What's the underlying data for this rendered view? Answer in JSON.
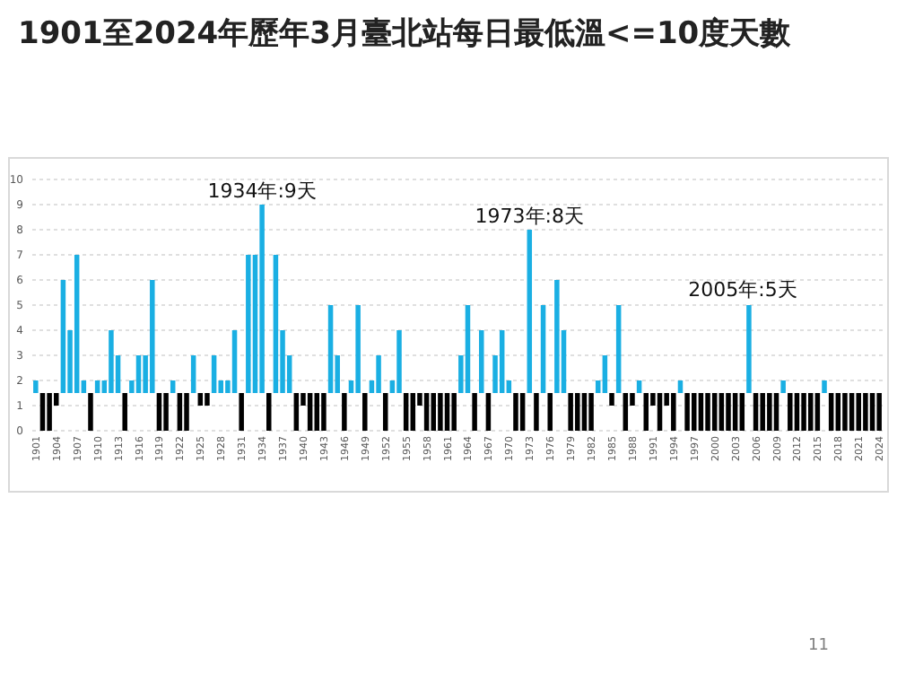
{
  "chart_data": {
    "type": "bar",
    "title": "1901至2024年歷年3月臺北站每日最低溫<=10度天數",
    "categories": [
      "1901",
      null,
      null,
      "1904",
      null,
      null,
      "1907",
      null,
      null,
      "1910",
      null,
      null,
      "1913",
      null,
      null,
      "1916",
      null,
      null,
      "1919",
      null,
      null,
      "1922",
      null,
      null,
      "1925",
      null,
      null,
      "1928",
      null,
      null,
      "1931",
      null,
      null,
      "1934",
      null,
      null,
      "1937",
      null,
      null,
      "1940",
      null,
      null,
      "1943",
      null,
      null,
      "1946",
      null,
      null,
      "1949",
      null,
      null,
      "1952",
      null,
      null,
      "1955",
      null,
      null,
      "1958",
      null,
      null,
      "1961",
      null,
      null,
      "1964",
      null,
      null,
      "1967",
      null,
      null,
      "1970",
      null,
      null,
      "1973",
      null,
      null,
      "1976",
      null,
      null,
      "1979",
      null,
      null,
      "1982",
      null,
      null,
      "1985",
      null,
      null,
      "1988",
      null,
      null,
      "1991",
      null,
      null,
      "1994",
      null,
      null,
      "1997",
      null,
      null,
      "2000",
      null,
      null,
      "2003",
      null,
      null,
      "2006",
      null,
      null,
      "2009",
      null,
      null,
      "2012",
      null,
      null,
      "2015",
      null,
      null,
      "2018",
      null,
      null,
      "2021",
      null,
      null,
      "2024"
    ],
    "base": [
      1.5,
      1.5,
      1.5,
      1.5,
      1.5,
      1.5,
      1.5,
      1.5,
      1.5,
      1.5,
      1.5,
      1.5,
      1.5,
      1.5,
      1.5,
      1.5,
      1.5,
      1.5,
      1.5,
      1.5,
      1.5,
      1.5,
      1.5,
      1.5,
      1.5,
      1.5,
      1.5,
      1.5,
      1.5,
      1.5,
      1.5,
      1.5,
      1.5,
      1.5,
      1.5,
      1.5,
      1.5,
      1.5,
      1.5,
      1.5,
      1.5,
      1.5,
      1.5,
      1.5,
      1.5,
      1.5,
      1.5,
      1.5,
      1.5,
      1.5,
      1.5,
      1.5,
      1.5,
      1.5,
      1.5,
      1.5,
      1.5,
      1.5,
      1.5,
      1.5,
      1.5,
      1.5,
      1.5,
      1.5,
      1.5,
      1.5,
      1.5,
      1.5,
      1.5,
      1.5,
      1.5,
      1.5,
      1.5,
      1.5,
      1.5,
      1.5,
      1.5,
      1.5,
      1.5,
      1.5,
      1.5,
      1.5,
      1.5,
      1.5,
      1.5,
      1.5,
      1.5,
      1.5,
      1.5,
      1.5,
      1.5,
      1.5,
      1.5,
      1.5,
      1.5,
      1.5,
      1.5,
      1.5,
      1.5,
      1.5,
      1.5,
      1.5,
      1.5,
      1.5,
      1.5,
      1.5,
      1.5,
      1.5,
      1.5,
      1.5,
      1.5,
      1.5,
      1.5,
      1.5,
      1.5,
      1.5,
      1.5,
      1.5,
      1.5,
      1.5,
      1.5,
      1.5,
      1.5,
      1.5
    ],
    "values": [
      0.5,
      -1.5,
      -1.5,
      -0.5,
      4.5,
      2.5,
      5.5,
      0.5,
      -1.5,
      0.5,
      0.5,
      2.5,
      1.5,
      -1.5,
      0.5,
      1.5,
      1.5,
      4.5,
      -1.5,
      -1.5,
      0.5,
      -1.5,
      -1.5,
      1.5,
      -0.5,
      -0.5,
      1.5,
      0.5,
      0.5,
      2.5,
      -1.5,
      5.5,
      5.5,
      7.5,
      -1.5,
      5.5,
      2.5,
      1.5,
      -1.5,
      -0.5,
      -1.5,
      -1.5,
      -1.5,
      3.5,
      1.5,
      -1.5,
      0.5,
      3.5,
      -1.5,
      0.5,
      1.5,
      -1.5,
      0.5,
      2.5,
      -1.5,
      -1.5,
      -0.5,
      -1.5,
      -1.5,
      -1.5,
      -1.5,
      -1.5,
      1.5,
      3.5,
      -1.5,
      2.5,
      -1.5,
      1.5,
      2.5,
      0.5,
      -1.5,
      -1.5,
      6.5,
      -1.5,
      3.5,
      -1.5,
      4.5,
      2.5,
      -1.5,
      -1.5,
      -1.5,
      -1.5,
      0.5,
      1.5,
      -0.5,
      3.5,
      -1.5,
      -0.5,
      0.5,
      -1.5,
      -0.5,
      -1.5,
      -0.5,
      -1.5,
      0.5,
      -1.5,
      -1.5,
      -1.5,
      -1.5,
      -1.5,
      -1.5,
      -1.5,
      -1.5,
      -1.5,
      3.5,
      -1.5,
      -1.5,
      -1.5,
      -1.5,
      0.5,
      -1.5,
      -1.5,
      -1.5,
      -1.5,
      -1.5,
      0.5,
      -1.5,
      -1.5,
      -1.5,
      -1.5,
      -1.5,
      -1.5,
      -1.5,
      -1.5
    ],
    "colors": [
      "#1aafe3",
      "#000000",
      "#000000",
      "#000000",
      "#1aafe3",
      "#1aafe3",
      "#1aafe3",
      "#1aafe3",
      "#000000",
      "#1aafe3",
      "#1aafe3",
      "#1aafe3",
      "#1aafe3",
      "#000000",
      "#1aafe3",
      "#1aafe3",
      "#1aafe3",
      "#1aafe3",
      "#000000",
      "#000000",
      "#1aafe3",
      "#000000",
      "#000000",
      "#1aafe3",
      "#000000",
      "#000000",
      "#1aafe3",
      "#1aafe3",
      "#1aafe3",
      "#1aafe3",
      "#000000",
      "#1aafe3",
      "#1aafe3",
      "#1aafe3",
      "#000000",
      "#1aafe3",
      "#1aafe3",
      "#1aafe3",
      "#000000",
      "#000000",
      "#000000",
      "#000000",
      "#000000",
      "#1aafe3",
      "#1aafe3",
      "#000000",
      "#1aafe3",
      "#1aafe3",
      "#000000",
      "#1aafe3",
      "#1aafe3",
      "#000000",
      "#1aafe3",
      "#1aafe3",
      "#000000",
      "#000000",
      "#000000",
      "#000000",
      "#000000",
      "#000000",
      "#000000",
      "#000000",
      "#1aafe3",
      "#1aafe3",
      "#000000",
      "#1aafe3",
      "#000000",
      "#1aafe3",
      "#1aafe3",
      "#1aafe3",
      "#000000",
      "#000000",
      "#1aafe3",
      "#000000",
      "#1aafe3",
      "#000000",
      "#1aafe3",
      "#1aafe3",
      "#000000",
      "#000000",
      "#000000",
      "#000000",
      "#1aafe3",
      "#1aafe3",
      "#000000",
      "#1aafe3",
      "#000000",
      "#000000",
      "#1aafe3",
      "#000000",
      "#000000",
      "#000000",
      "#000000",
      "#000000",
      "#1aafe3",
      "#000000",
      "#000000",
      "#000000",
      "#000000",
      "#000000",
      "#000000",
      "#000000",
      "#000000",
      "#000000",
      "#1aafe3",
      "#000000",
      "#000000",
      "#000000",
      "#000000",
      "#1aafe3",
      "#000000",
      "#000000",
      "#000000",
      "#000000",
      "#000000",
      "#1aafe3",
      "#000000",
      "#000000",
      "#000000",
      "#000000",
      "#000000",
      "#000000",
      "#000000",
      "#000000"
    ],
    "ylim": [
      0,
      10
    ],
    "yticks": [
      0,
      1,
      2,
      3,
      4,
      5,
      6,
      7,
      8,
      9,
      10
    ],
    "grid": "y",
    "annotations": [
      {
        "text": "1934年:9天",
        "x": "1934",
        "y": 9
      },
      {
        "text": "1973年:8天",
        "x": "1973",
        "y": 8
      },
      "2005年:5天",
      "11"
    ]
  }
}
